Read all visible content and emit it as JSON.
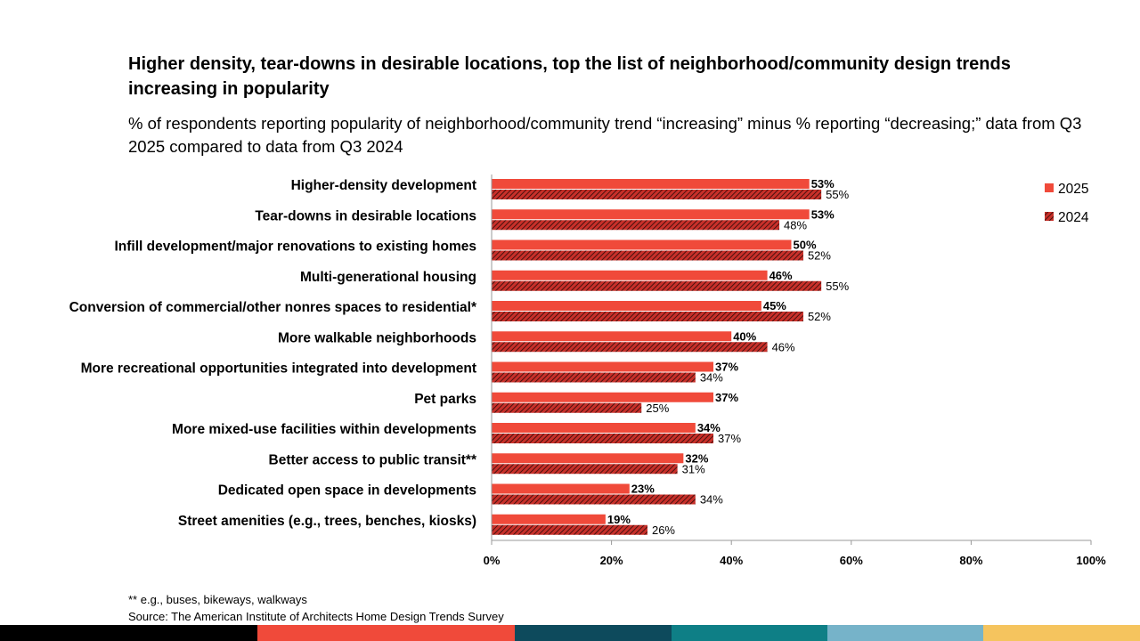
{
  "title": "Higher density, tear-downs in desirable locations, top the list of neighborhood/community design trends increasing in popularity",
  "subtitle": "% of respondents reporting popularity of neighborhood/community trend “increasing” minus % reporting “decreasing;” data from Q3 2025 compared to data from Q3 2024",
  "footnote": "** e.g., buses, bikeways, walkways",
  "source": "Source: The American Institute of Architects Home Design Trends Survey",
  "colors": {
    "series_2025": "#f04a3a",
    "series_2024": "#c8302a",
    "axis": "#9a9a9a"
  },
  "color_strip": [
    "#000000",
    "#f04a3a",
    "#0d4a5c",
    "#0e7f86",
    "#76b3c9",
    "#f5c45e"
  ],
  "chart_data": {
    "type": "bar",
    "orientation": "horizontal",
    "categories": [
      "Higher-density development",
      "Tear-downs in desirable locations",
      "Infill development/major renovations to existing homes",
      "Multi-generational housing",
      "Conversion of commercial/other nonres spaces to residential*",
      "More walkable neighborhoods",
      "More recreational opportunities integrated into development",
      "Pet parks",
      "More mixed-use facilities within developments",
      "Better access to public transit**",
      "Dedicated open space in developments",
      "Street amenities (e.g., trees, benches, kiosks)"
    ],
    "series": [
      {
        "name": "2025",
        "values": [
          53,
          53,
          50,
          46,
          45,
          40,
          37,
          37,
          34,
          32,
          23,
          19
        ],
        "pattern": "solid"
      },
      {
        "name": "2024",
        "values": [
          55,
          48,
          52,
          55,
          52,
          46,
          34,
          25,
          37,
          31,
          34,
          26
        ],
        "pattern": "hatched"
      }
    ],
    "xlim": [
      0,
      100
    ],
    "xticks": [
      0,
      20,
      40,
      60,
      80,
      100
    ],
    "tick_suffix": "%",
    "legend": "top-right",
    "xlabel": "",
    "ylabel": ""
  }
}
